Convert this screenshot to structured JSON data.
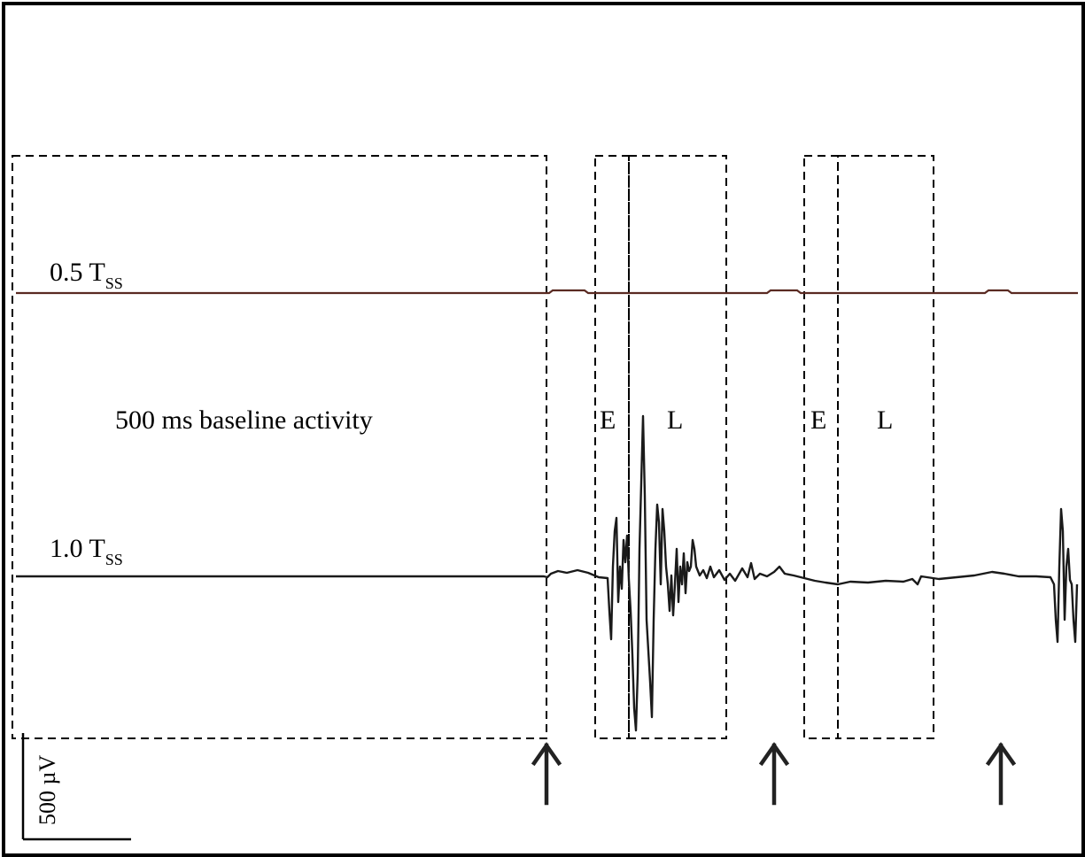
{
  "labels": {
    "trace_top_main": "0.5 T",
    "trace_top_sub": "SS",
    "trace_bottom_main": "1.0 T",
    "trace_bottom_sub": "SS",
    "baseline": "500 ms baseline activity",
    "early_1": "E",
    "late_1": "L",
    "early_2": "E",
    "late_2": "L",
    "scale_bar": "500 µV"
  },
  "colors": {
    "trace_top": "#5a2a22",
    "trace_bottom": "#1a1a1a",
    "box": "#000000"
  },
  "icons": [
    "stimulus-arrow-icon",
    "stimulus-arrow-icon",
    "stimulus-arrow-icon"
  ]
}
